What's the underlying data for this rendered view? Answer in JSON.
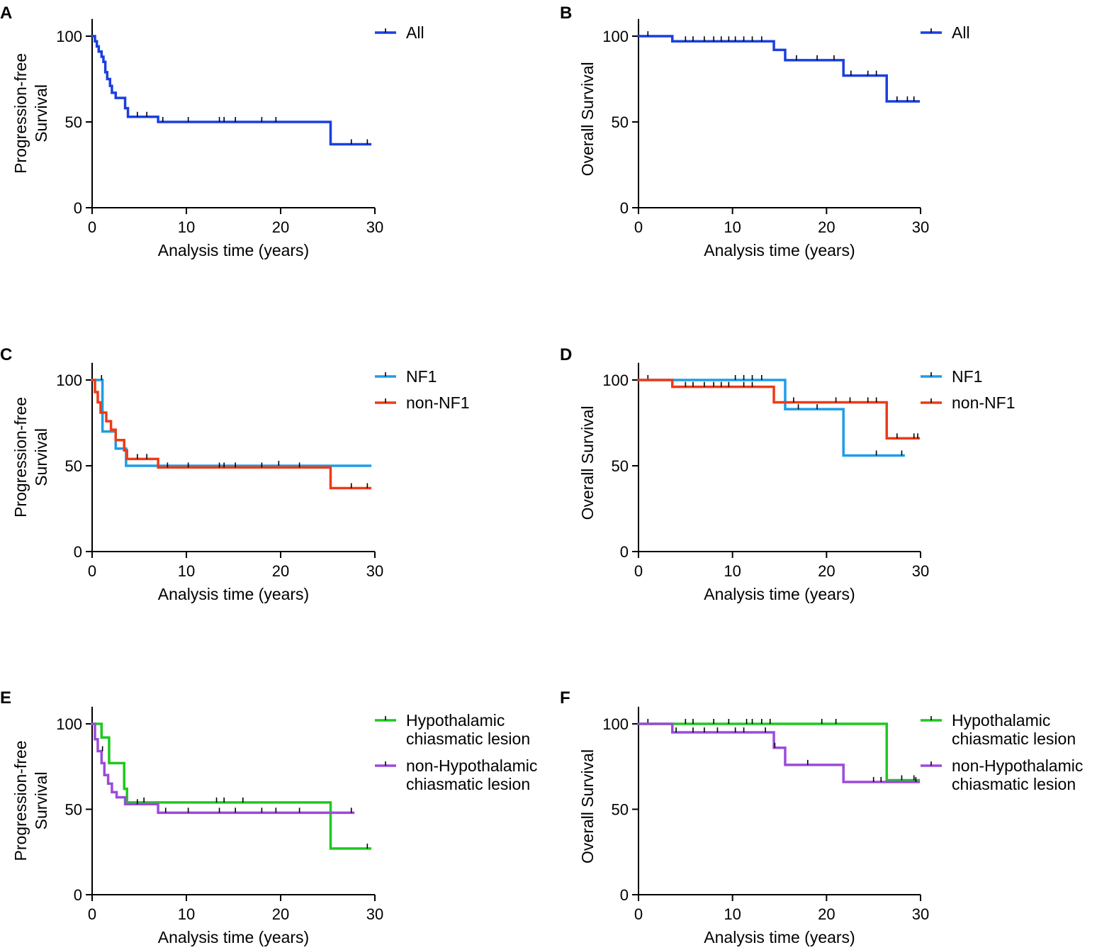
{
  "chart_data": [
    {
      "panel": "A",
      "type": "line",
      "subtype": "kaplan-meier",
      "xlabel": "Analysis time (years)",
      "ylabel": "Progression-free Survival",
      "xlim": [
        0,
        30
      ],
      "ylim": [
        0,
        110
      ],
      "xticks": [
        "0",
        "10",
        "20",
        "30"
      ],
      "yticks": [
        "0",
        "50",
        "100"
      ],
      "legend_position": "top-right",
      "series": [
        {
          "name": "All",
          "color": "#1a3fe0",
          "steps": [
            [
              0,
              100
            ],
            [
              0.3,
              97
            ],
            [
              0.5,
              94
            ],
            [
              0.7,
              91
            ],
            [
              1.0,
              88
            ],
            [
              1.2,
              85
            ],
            [
              1.4,
              79
            ],
            [
              1.6,
              75
            ],
            [
              1.9,
              71
            ],
            [
              2.1,
              67
            ],
            [
              2.5,
              64
            ],
            [
              3.5,
              58
            ],
            [
              3.8,
              53
            ],
            [
              7.0,
              50
            ],
            [
              25.3,
              37
            ],
            [
              29.5,
              37
            ]
          ],
          "censored": [
            [
              4.8,
              53
            ],
            [
              5.8,
              53
            ],
            [
              7.5,
              50
            ],
            [
              10.2,
              50
            ],
            [
              13.5,
              50
            ],
            [
              14.0,
              50
            ],
            [
              15.2,
              50
            ],
            [
              18.0,
              50
            ],
            [
              19.5,
              50
            ],
            [
              27.5,
              37
            ],
            [
              29.2,
              37
            ]
          ]
        }
      ]
    },
    {
      "panel": "B",
      "type": "line",
      "subtype": "kaplan-meier",
      "xlabel": "Analysis time (years)",
      "ylabel": "Overall Survival",
      "xlim": [
        0,
        30
      ],
      "ylim": [
        0,
        110
      ],
      "xticks": [
        "0",
        "10",
        "20",
        "30"
      ],
      "yticks": [
        "0",
        "50",
        "100"
      ],
      "legend_position": "top-right",
      "series": [
        {
          "name": "All",
          "color": "#1a3fe0",
          "steps": [
            [
              0,
              100
            ],
            [
              3.6,
              97
            ],
            [
              14.4,
              92
            ],
            [
              15.6,
              86
            ],
            [
              21.8,
              77
            ],
            [
              26.4,
              62
            ],
            [
              29.8,
              62
            ]
          ],
          "censored": [
            [
              1.0,
              100
            ],
            [
              5.0,
              97
            ],
            [
              5.8,
              97
            ],
            [
              7.0,
              97
            ],
            [
              8.0,
              97
            ],
            [
              8.8,
              97
            ],
            [
              9.6,
              97
            ],
            [
              10.3,
              97
            ],
            [
              11.2,
              97
            ],
            [
              12.1,
              97
            ],
            [
              13.1,
              97
            ],
            [
              16.8,
              86
            ],
            [
              19.0,
              86
            ],
            [
              20.8,
              86
            ],
            [
              22.6,
              77
            ],
            [
              24.4,
              77
            ],
            [
              25.3,
              77
            ],
            [
              27.5,
              62
            ],
            [
              28.6,
              62
            ],
            [
              29.3,
              62
            ]
          ]
        }
      ]
    },
    {
      "panel": "C",
      "type": "line",
      "subtype": "kaplan-meier",
      "xlabel": "Analysis time (years)",
      "ylabel": "Progression-free Survival",
      "xlim": [
        0,
        30
      ],
      "ylim": [
        0,
        110
      ],
      "xticks": [
        "0",
        "10",
        "20",
        "30"
      ],
      "yticks": [
        "0",
        "50",
        "100"
      ],
      "legend_position": "top-right",
      "series": [
        {
          "name": "NF1",
          "color": "#1e9de6",
          "steps": [
            [
              0,
              100
            ],
            [
              1.1,
              70
            ],
            [
              2.5,
              60
            ],
            [
              3.6,
              50
            ],
            [
              29.5,
              50
            ]
          ],
          "censored": [
            [
              1.0,
              100
            ],
            [
              19.8,
              50
            ]
          ]
        },
        {
          "name": "non-NF1",
          "color": "#ee3a18",
          "steps": [
            [
              0,
              100
            ],
            [
              0.3,
              93
            ],
            [
              0.6,
              87
            ],
            [
              0.9,
              81
            ],
            [
              1.5,
              76
            ],
            [
              2.0,
              71
            ],
            [
              2.5,
              65
            ],
            [
              3.4,
              59
            ],
            [
              3.7,
              54
            ],
            [
              7.0,
              49
            ],
            [
              25.3,
              37
            ],
            [
              29.5,
              37
            ]
          ],
          "censored": [
            [
              4.8,
              54
            ],
            [
              5.8,
              54
            ],
            [
              8.0,
              49
            ],
            [
              10.2,
              49
            ],
            [
              13.5,
              49
            ],
            [
              14.0,
              49
            ],
            [
              15.2,
              49
            ],
            [
              18.0,
              49
            ],
            [
              22.0,
              49
            ],
            [
              27.5,
              37
            ],
            [
              29.2,
              37
            ]
          ]
        }
      ]
    },
    {
      "panel": "D",
      "type": "line",
      "subtype": "kaplan-meier",
      "xlabel": "Analysis time (years)",
      "ylabel": "Overall Survival",
      "xlim": [
        0,
        30
      ],
      "ylim": [
        0,
        110
      ],
      "xticks": [
        "0",
        "10",
        "20",
        "30"
      ],
      "yticks": [
        "0",
        "50",
        "100"
      ],
      "legend_position": "top-right",
      "series": [
        {
          "name": "NF1",
          "color": "#1e9de6",
          "steps": [
            [
              0,
              100
            ],
            [
              15.6,
              83
            ],
            [
              21.8,
              56
            ],
            [
              28.2,
              56
            ]
          ],
          "censored": [
            [
              1.0,
              100
            ],
            [
              10.3,
              100
            ],
            [
              11.2,
              100
            ],
            [
              12.1,
              100
            ],
            [
              13.1,
              100
            ],
            [
              17.0,
              83
            ],
            [
              19.0,
              83
            ],
            [
              25.3,
              56
            ],
            [
              28.0,
              56
            ]
          ]
        },
        {
          "name": "non-NF1",
          "color": "#ee3a18",
          "steps": [
            [
              0,
              100
            ],
            [
              3.6,
              96
            ],
            [
              14.4,
              87
            ],
            [
              26.4,
              66
            ],
            [
              29.8,
              66
            ]
          ],
          "censored": [
            [
              5.0,
              96
            ],
            [
              5.8,
              96
            ],
            [
              7.0,
              96
            ],
            [
              8.0,
              96
            ],
            [
              8.8,
              96
            ],
            [
              9.6,
              96
            ],
            [
              11.2,
              96
            ],
            [
              12.1,
              96
            ],
            [
              16.5,
              87
            ],
            [
              21.0,
              87
            ],
            [
              22.5,
              87
            ],
            [
              24.4,
              87
            ],
            [
              25.3,
              87
            ],
            [
              27.5,
              66
            ],
            [
              29.3,
              66
            ],
            [
              29.7,
              66
            ]
          ]
        }
      ]
    },
    {
      "panel": "E",
      "type": "line",
      "subtype": "kaplan-meier",
      "xlabel": "Analysis time (years)",
      "ylabel": "Progression-free Survival",
      "xlim": [
        0,
        30
      ],
      "ylim": [
        0,
        110
      ],
      "xticks": [
        "0",
        "10",
        "20",
        "30"
      ],
      "yticks": [
        "0",
        "50",
        "100"
      ],
      "legend_position": "top-right",
      "series": [
        {
          "name": "Hypothalamic chiasmatic lesion",
          "legend_lines": [
            "Hypothalamic",
            "chiasmatic lesion"
          ],
          "color": "#1ec81e",
          "steps": [
            [
              0,
              100
            ],
            [
              1.0,
              92
            ],
            [
              1.8,
              77
            ],
            [
              3.4,
              62
            ],
            [
              3.7,
              54
            ],
            [
              25.3,
              27
            ],
            [
              29.5,
              27
            ]
          ],
          "censored": [
            [
              5.5,
              54
            ],
            [
              13.2,
              54
            ],
            [
              14.0,
              54
            ],
            [
              16.0,
              54
            ],
            [
              29.2,
              27
            ]
          ]
        },
        {
          "name": "non-Hypothalamic chiasmatic lesion",
          "legend_lines": [
            "non-Hypothalamic",
            "chiasmatic lesion"
          ],
          "color": "#9b4bdc",
          "steps": [
            [
              0,
              100
            ],
            [
              0.3,
              91
            ],
            [
              0.6,
              84
            ],
            [
              1.0,
              77
            ],
            [
              1.3,
              70
            ],
            [
              1.7,
              65
            ],
            [
              2.1,
              60
            ],
            [
              2.6,
              57
            ],
            [
              3.5,
              53
            ],
            [
              7.0,
              48
            ],
            [
              27.7,
              48
            ]
          ],
          "censored": [
            [
              1.1,
              84
            ],
            [
              4.8,
              53
            ],
            [
              7.8,
              48
            ],
            [
              10.2,
              48
            ],
            [
              13.5,
              48
            ],
            [
              15.2,
              48
            ],
            [
              18.0,
              48
            ],
            [
              19.5,
              48
            ],
            [
              22.0,
              48
            ],
            [
              27.5,
              48
            ]
          ]
        }
      ]
    },
    {
      "panel": "F",
      "type": "line",
      "subtype": "kaplan-meier",
      "xlabel": "Analysis time (years)",
      "ylabel": "Overall Survival",
      "xlim": [
        0,
        30
      ],
      "ylim": [
        0,
        110
      ],
      "xticks": [
        "0",
        "10",
        "20",
        "30"
      ],
      "yticks": [
        "0",
        "50",
        "100"
      ],
      "legend_position": "top-right",
      "series": [
        {
          "name": "Hypothalamic chiasmatic lesion",
          "legend_lines": [
            "Hypothalamic",
            "chiasmatic lesion"
          ],
          "color": "#1ec81e",
          "steps": [
            [
              0,
              100
            ],
            [
              26.4,
              67
            ],
            [
              29.8,
              67
            ]
          ],
          "censored": [
            [
              1.0,
              100
            ],
            [
              5.0,
              100
            ],
            [
              5.8,
              100
            ],
            [
              8.0,
              100
            ],
            [
              9.6,
              100
            ],
            [
              11.5,
              100
            ],
            [
              12.1,
              100
            ],
            [
              13.1,
              100
            ],
            [
              14.0,
              100
            ],
            [
              19.5,
              100
            ],
            [
              21.0,
              100
            ],
            [
              28.0,
              67
            ],
            [
              29.3,
              67
            ]
          ]
        },
        {
          "name": "non-Hypothalamic chiasmatic lesion",
          "legend_lines": [
            "non-Hypothalamic",
            "chiasmatic lesion"
          ],
          "color": "#9b4bdc",
          "steps": [
            [
              0,
              100
            ],
            [
              3.6,
              95
            ],
            [
              14.4,
              86
            ],
            [
              15.6,
              76
            ],
            [
              21.8,
              66
            ],
            [
              29.8,
              66
            ]
          ],
          "censored": [
            [
              4.0,
              95
            ],
            [
              5.8,
              95
            ],
            [
              7.0,
              95
            ],
            [
              8.4,
              95
            ],
            [
              10.3,
              95
            ],
            [
              11.2,
              95
            ],
            [
              13.5,
              95
            ],
            [
              14.5,
              86
            ],
            [
              18.0,
              76
            ],
            [
              25.0,
              66
            ],
            [
              25.8,
              66
            ],
            [
              29.5,
              66
            ]
          ]
        }
      ]
    }
  ]
}
